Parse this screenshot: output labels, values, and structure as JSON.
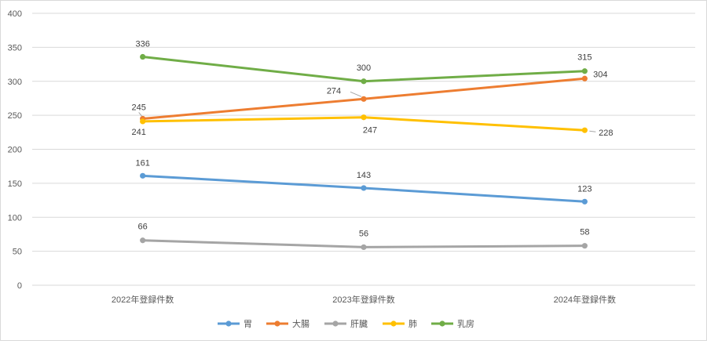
{
  "chart_data": {
    "type": "line",
    "categories": [
      "2022年登録件数",
      "2023年登録件数",
      "2024年登録件数"
    ],
    "ylim": [
      0,
      400
    ],
    "yticks": [
      0,
      50,
      100,
      150,
      200,
      250,
      300,
      350,
      400
    ],
    "grid": true,
    "legend_position": "bottom",
    "series": [
      {
        "name": "胃",
        "color": "#5B9BD5",
        "values": [
          161,
          143,
          123
        ]
      },
      {
        "name": "大腸",
        "color": "#ED7D31",
        "values": [
          245,
          274,
          304
        ]
      },
      {
        "name": "肝臓",
        "color": "#A5A5A5",
        "values": [
          66,
          56,
          58
        ]
      },
      {
        "name": "肺",
        "color": "#FFC000",
        "values": [
          241,
          247,
          228
        ]
      },
      {
        "name": "乳房",
        "color": "#70AD47",
        "values": [
          336,
          300,
          315
        ]
      }
    ]
  }
}
